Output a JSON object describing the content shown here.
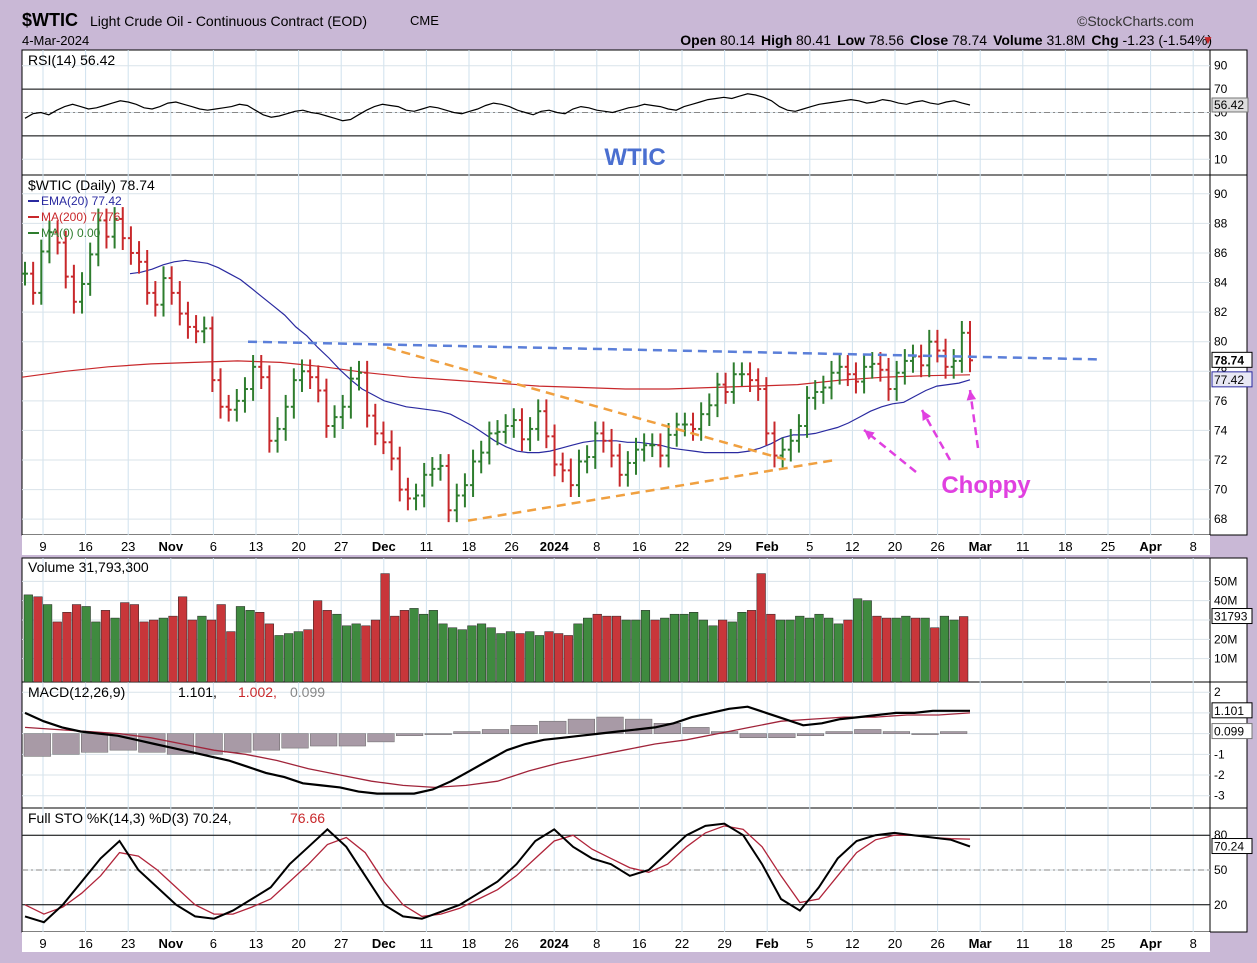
{
  "header": {
    "symbol": "$WTIC",
    "name": "Light Crude Oil - Continuous Contract (EOD)",
    "exchange": "CME",
    "date": "4-Mar-2024",
    "brand": "©StockCharts.com",
    "ohlc": [
      {
        "label": "Open",
        "value": "80.14"
      },
      {
        "label": "High",
        "value": "80.41"
      },
      {
        "label": "Low",
        "value": "78.56"
      },
      {
        "label": "Close",
        "value": "78.74"
      },
      {
        "label": "Volume",
        "value": "31.8M"
      },
      {
        "label": "Chg",
        "value": "-1.23 (-1.54%)"
      }
    ],
    "chg_arrow": "▼"
  },
  "annotations": {
    "watermark": "WTIC",
    "choppy": "Choppy"
  },
  "colors": {
    "up": "#2e7d2e",
    "down": "#c8282b",
    "ema": "#2a2aa0",
    "ma200": "#c8282b",
    "triangle": "#f0a040",
    "resistance": "#5b7fd9",
    "arrows": "#e040e0",
    "histogram": "#a89aa6"
  },
  "x_axis": {
    "labels": [
      "9",
      "16",
      "23",
      "Nov",
      "6",
      "13",
      "20",
      "27",
      "Dec",
      "11",
      "18",
      "26",
      "2024",
      "8",
      "16",
      "22",
      "29",
      "Feb",
      "5",
      "12",
      "20",
      "26",
      "Mar",
      "11",
      "18",
      "25",
      "Apr",
      "8"
    ],
    "bold": [
      "Nov",
      "Dec",
      "2024",
      "Feb",
      "Mar",
      "Apr"
    ]
  },
  "chart_data": [
    {
      "type": "line",
      "title": "RSI(14) 56.42",
      "ylim": [
        0,
        100
      ],
      "ticks": [
        "90",
        "70",
        "50",
        "30",
        "10"
      ],
      "current_label": "56.42",
      "series": [
        {
          "name": "RSI(14)",
          "values": [
            45,
            49,
            50,
            48,
            52,
            55,
            57,
            55,
            53,
            54,
            56,
            58,
            60,
            59,
            57,
            54,
            53,
            55,
            58,
            59,
            57,
            55,
            53,
            52,
            53,
            54,
            55,
            57,
            56,
            52,
            48,
            46,
            47,
            49,
            51,
            52,
            50,
            49,
            47,
            45,
            43,
            44,
            48,
            52,
            55,
            57,
            56,
            55,
            52,
            51,
            53,
            55,
            54,
            52,
            50,
            49,
            51,
            53,
            56,
            58,
            57,
            55,
            52,
            50,
            48,
            51,
            52,
            50,
            49,
            53,
            55,
            54,
            52,
            51,
            50,
            52,
            54,
            55,
            57,
            56,
            55,
            53,
            52,
            55,
            57,
            59,
            61,
            62,
            63,
            62,
            64,
            66,
            65,
            63,
            60,
            55,
            52,
            51,
            53,
            55,
            57,
            58,
            59,
            60,
            61,
            60,
            58,
            59,
            61,
            60,
            58,
            57,
            59,
            60,
            58,
            57,
            59,
            60,
            58,
            56.42
          ]
        }
      ]
    },
    {
      "type": "bar",
      "title": "$WTIC (Daily) 78.74",
      "legend": [
        "EMA(20) 77.42",
        "MA(200) 77.76",
        "MA(0) 0.00"
      ],
      "ylim": [
        67.2,
        91
      ],
      "ticks": [
        "90",
        "88",
        "86",
        "84",
        "82",
        "80",
        "78",
        "76",
        "74",
        "72",
        "70",
        "68"
      ],
      "current_labels": [
        "78.74",
        "77.42"
      ],
      "closes": [
        84.6,
        83.3,
        86.1,
        87.4,
        86.7,
        84.4,
        82.7,
        83.9,
        85.9,
        88.2,
        87.1,
        88.3,
        87.0,
        86.0,
        85.4,
        83.3,
        82.5,
        84.3,
        83.3,
        81.9,
        81.0,
        80.7,
        80.9,
        77.4,
        75.6,
        75.4,
        76.0,
        76.8,
        78.3,
        77.6,
        73.3,
        74.1,
        75.6,
        77.4,
        78.0,
        77.6,
        76.7,
        74.3,
        74.9,
        75.6,
        77.5,
        77.9,
        75.0,
        73.8,
        73.2,
        72.1,
        70.0,
        69.4,
        69.6,
        71.0,
        71.4,
        71.6,
        68.6,
        69.6,
        70.3,
        71.9,
        72.5,
        73.8,
        73.9,
        74.3,
        74.7,
        73.4,
        74.1,
        75.3,
        73.6,
        71.7,
        71.3,
        70.3,
        71.9,
        72.2,
        73.8,
        73.3,
        72.3,
        71.0,
        71.8,
        72.7,
        73.0,
        73.0,
        72.3,
        73.7,
        74.4,
        74.4,
        74.1,
        75.1,
        75.7,
        77.1,
        76.6,
        77.8,
        77.8,
        77.4,
        76.8,
        73.8,
        72.3,
        72.7,
        73.3,
        74.3,
        76.2,
        76.6,
        76.9,
        77.9,
        78.3,
        77.8,
        77.3,
        78.3,
        78.5,
        78.1,
        76.8,
        77.9,
        78.7,
        79.0,
        78.4,
        80.0,
        79.4,
        78.3,
        78.7,
        80.6,
        78.74
      ],
      "ema20": [
        84.6,
        84.7,
        84.9,
        85.2,
        85.4,
        85.5,
        85.4,
        85.3,
        85.0,
        84.6,
        84.2,
        83.6,
        83.0,
        82.4,
        81.8,
        81.0,
        80.4,
        79.6,
        78.9,
        78.1,
        77.4,
        76.8,
        76.4,
        76.0,
        75.8,
        75.6,
        75.5,
        75.4,
        75.3,
        75.1,
        74.7,
        74.3,
        73.8,
        73.3,
        72.9,
        72.6,
        72.5,
        72.5,
        72.6,
        72.8,
        73.0,
        73.2,
        73.3,
        73.3,
        73.3,
        73.2,
        73.2,
        73.1,
        73.0,
        72.8,
        72.7,
        72.6,
        72.5,
        72.5,
        72.5,
        72.5,
        72.6,
        72.8,
        73.1,
        73.5,
        73.7,
        73.7,
        73.8,
        74.0,
        74.2,
        74.5,
        74.9,
        75.3,
        75.6,
        75.8,
        75.9,
        76.3,
        76.7,
        77.0,
        77.1,
        77.2,
        77.42
      ],
      "ma200": [
        77.6,
        78.0,
        78.3,
        78.5,
        78.6,
        78.7,
        78.6,
        78.3,
        77.9,
        77.6,
        77.4,
        77.2,
        77.0,
        76.9,
        76.8,
        76.8,
        76.9,
        77.0,
        77.1,
        77.4,
        77.6,
        77.7,
        77.76
      ],
      "triangle_upper": [
        [
          0,
          79.6
        ],
        [
          0.3,
          72
        ]
      ],
      "triangle_lower": [
        [
          0,
          67.9
        ],
        [
          0.5,
          72
        ]
      ],
      "resistance": [
        [
          0,
          80
        ],
        [
          1,
          78.8
        ]
      ]
    },
    {
      "type": "bar",
      "title": "Volume 31,793,300",
      "ylim": [
        0,
        60
      ],
      "ticks": [
        "50M",
        "40M",
        "30M",
        "20M",
        "10M"
      ],
      "current_label": "31793",
      "values_millions": [
        43,
        42,
        38,
        29,
        34,
        38,
        37,
        29,
        35,
        31,
        39,
        38,
        29,
        30,
        31,
        32,
        42,
        30,
        32,
        30,
        38,
        24,
        37,
        35,
        34,
        28,
        22,
        23,
        24,
        25,
        40,
        35,
        33,
        27,
        28,
        27,
        30,
        54,
        32,
        35,
        36,
        33,
        35,
        28,
        26,
        25,
        27,
        28,
        26,
        23,
        24,
        23,
        24,
        22,
        24,
        23,
        22,
        28,
        31,
        33,
        32,
        32,
        30,
        30,
        35,
        30,
        31,
        33,
        33,
        34,
        30,
        27,
        30,
        29,
        34,
        35,
        54,
        33,
        30,
        30,
        32,
        31,
        33,
        31,
        28,
        30,
        41,
        40,
        32,
        31,
        31,
        32,
        31,
        31,
        26,
        32,
        30,
        31.8
      ]
    },
    {
      "type": "line",
      "title": "MACD(12,26,9)",
      "values_label": [
        "1.101",
        "1.002",
        "0.099"
      ],
      "ylim": [
        -3.4,
        2.3
      ],
      "ticks": [
        "2",
        "1",
        "0",
        "-1",
        "-2",
        "-3"
      ],
      "current_labels": [
        "1.101",
        "0.099"
      ],
      "series": [
        {
          "name": "MACD",
          "values": [
            1.0,
            0.6,
            0.3,
            0.1,
            0.0,
            -0.1,
            -0.3,
            -0.5,
            -0.7,
            -0.9,
            -1.1,
            -1.3,
            -1.6,
            -1.9,
            -2.1,
            -2.4,
            -2.5,
            -2.6,
            -2.8,
            -2.9,
            -2.9,
            -2.9,
            -2.7,
            -2.3,
            -1.8,
            -1.3,
            -0.8,
            -0.5,
            -0.3,
            -0.2,
            -0.1,
            0.0,
            0.1,
            0.2,
            0.3,
            0.5,
            0.8,
            1.0,
            1.2,
            1.3,
            1.0,
            0.7,
            0.4,
            0.5,
            0.7,
            0.8,
            0.9,
            1.0,
            1.0,
            1.1,
            1.1,
            1.101
          ]
        },
        {
          "name": "Signal",
          "values": [
            0.3,
            0.2,
            0.1,
            0.0,
            -0.2,
            -0.5,
            -0.8,
            -1.0,
            -1.3,
            -1.7,
            -2.0,
            -2.3,
            -2.5,
            -2.6,
            -2.5,
            -2.3,
            -1.8,
            -1.4,
            -1.1,
            -0.8,
            -0.5,
            -0.3,
            0.0,
            0.3,
            0.6,
            0.7,
            0.8,
            0.8,
            0.9,
            0.9,
            1.002
          ]
        },
        {
          "name": "Histogram",
          "values": [
            -1.1,
            -1.0,
            -0.9,
            -0.8,
            -0.9,
            -1.0,
            -1.0,
            -0.9,
            -0.8,
            -0.7,
            -0.6,
            -0.6,
            -0.4,
            -0.1,
            0.0,
            0.1,
            0.2,
            0.4,
            0.6,
            0.7,
            0.8,
            0.7,
            0.5,
            0.3,
            0.1,
            -0.2,
            -0.2,
            -0.1,
            0.1,
            0.2,
            0.1,
            0.0,
            0.099
          ]
        }
      ]
    },
    {
      "type": "line",
      "title": "Full STO %K(14,3) %D(3)",
      "values_label": [
        "70.24",
        "76.66"
      ],
      "ylim": [
        0,
        100
      ],
      "ticks": [
        "80",
        "50",
        "20"
      ],
      "current_labels": [
        "70.24"
      ],
      "series": [
        {
          "name": "%K",
          "values": [
            10,
            5,
            20,
            40,
            60,
            75,
            50,
            35,
            20,
            10,
            8,
            15,
            25,
            35,
            55,
            70,
            85,
            70,
            45,
            20,
            10,
            8,
            14,
            20,
            30,
            40,
            55,
            75,
            85,
            70,
            60,
            55,
            45,
            50,
            65,
            80,
            88,
            90,
            80,
            55,
            25,
            15,
            35,
            60,
            75,
            80,
            82,
            80,
            78,
            76,
            70.24
          ]
        },
        {
          "name": "%D",
          "values": [
            20,
            12,
            18,
            30,
            45,
            65,
            62,
            50,
            35,
            20,
            12,
            12,
            18,
            25,
            40,
            55,
            72,
            78,
            65,
            40,
            20,
            10,
            12,
            17,
            25,
            33,
            45,
            60,
            75,
            80,
            68,
            60,
            52,
            48,
            55,
            70,
            82,
            88,
            85,
            70,
            45,
            22,
            25,
            45,
            65,
            76,
            80,
            80,
            78,
            77,
            76.66
          ]
        }
      ]
    }
  ]
}
